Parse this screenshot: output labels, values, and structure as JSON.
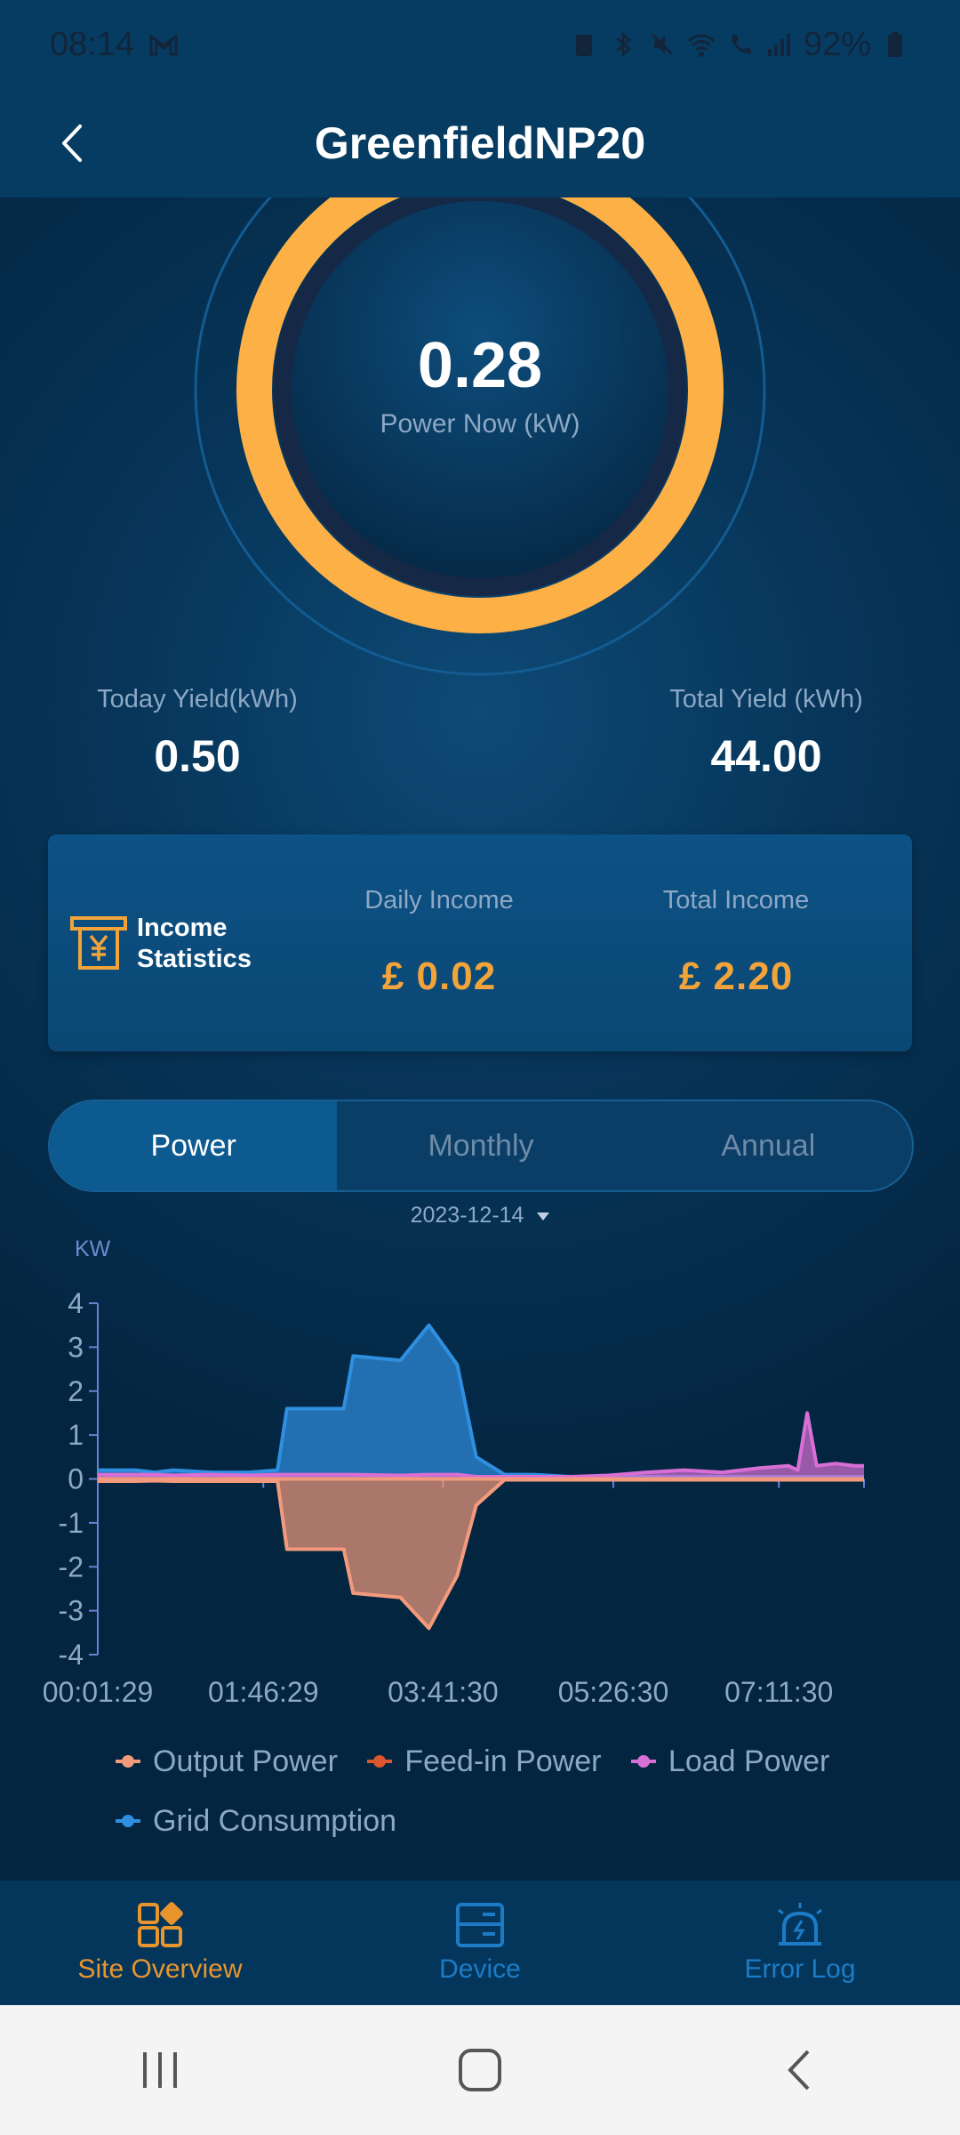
{
  "status": {
    "time": "08:14",
    "battery": "92%"
  },
  "header": {
    "title": "GreenfieldNP20"
  },
  "gauge": {
    "value": "0.28",
    "label": "Power Now (kW)"
  },
  "yield": {
    "today_label": "Today Yield(kWh)",
    "today_value": "0.50",
    "total_label": "Total Yield (kWh)",
    "total_value": "44.00"
  },
  "income": {
    "title_line1": "Income",
    "title_line2": "Statistics",
    "daily_label": "Daily Income",
    "daily_value": "£  0.02",
    "total_label": "Total Income",
    "total_value": "£  2.20"
  },
  "tabs": [
    "Power",
    "Monthly",
    "Annual"
  ],
  "date": "2023-12-14",
  "chart_data": {
    "type": "area",
    "ylabel": "KW",
    "ylim": [
      -4,
      4
    ],
    "yticks": [
      "4",
      "3",
      "2",
      "1",
      "0",
      "-1",
      "-2",
      "-3",
      "-4"
    ],
    "xticks": [
      "00:01:29",
      "01:46:29",
      "03:41:30",
      "05:26:30",
      "07:11:30"
    ],
    "x_hours": [
      0.0,
      0.4,
      0.6,
      0.8,
      1.2,
      1.6,
      1.9,
      2.0,
      2.6,
      2.7,
      3.2,
      3.5,
      3.8,
      4.0,
      4.3,
      4.6,
      5.0,
      5.4,
      5.8,
      6.2,
      6.6,
      7.0,
      7.3,
      7.4,
      7.5,
      7.6,
      7.8,
      8.0,
      8.1
    ],
    "series": [
      {
        "name": "Output Power",
        "color": "#f49a7c",
        "values": [
          0,
          0,
          0,
          0,
          0,
          0,
          0,
          0,
          0,
          0,
          0,
          0,
          0,
          0,
          0,
          0,
          0,
          0,
          0,
          0,
          0,
          0,
          0,
          0,
          0,
          0,
          0,
          0,
          0
        ]
      },
      {
        "name": "Feed-in Power",
        "color": "#d9562e",
        "values": [
          -0.05,
          -0.05,
          -0.04,
          -0.05,
          -0.05,
          -0.05,
          -0.05,
          -1.6,
          -1.6,
          -2.6,
          -2.7,
          -3.4,
          -2.2,
          -0.6,
          -0.02,
          -0.02,
          -0.02,
          -0.02,
          -0.02,
          -0.02,
          -0.02,
          -0.02,
          -0.02,
          -0.02,
          -0.02,
          -0.02,
          -0.02,
          -0.02,
          -0.02
        ]
      },
      {
        "name": "Load Power",
        "color": "#d86fd5",
        "values": [
          0.1,
          0.1,
          0.1,
          0.08,
          0.1,
          0.08,
          0.1,
          0.1,
          0.1,
          0.1,
          0.08,
          0.1,
          0.1,
          0.05,
          0.05,
          0.05,
          0.05,
          0.08,
          0.15,
          0.2,
          0.15,
          0.25,
          0.3,
          0.2,
          1.5,
          0.3,
          0.35,
          0.3,
          0.3
        ]
      },
      {
        "name": "Grid Consumption",
        "color": "#2f8fe0",
        "values": [
          0.2,
          0.2,
          0.15,
          0.2,
          0.15,
          0.15,
          0.2,
          1.6,
          1.6,
          2.8,
          2.7,
          3.5,
          2.6,
          0.5,
          0.1,
          0.1,
          0.05,
          0.05,
          0.05,
          0.05,
          0.05,
          0.05,
          0.05,
          0.05,
          0.05,
          0.05,
          0.05,
          0.05,
          0.05
        ]
      }
    ]
  },
  "legend": [
    "Output Power",
    "Feed-in Power",
    "Load Power",
    "Grid Consumption"
  ],
  "bottom_nav": [
    "Site Overview",
    "Device",
    "Error Log"
  ]
}
